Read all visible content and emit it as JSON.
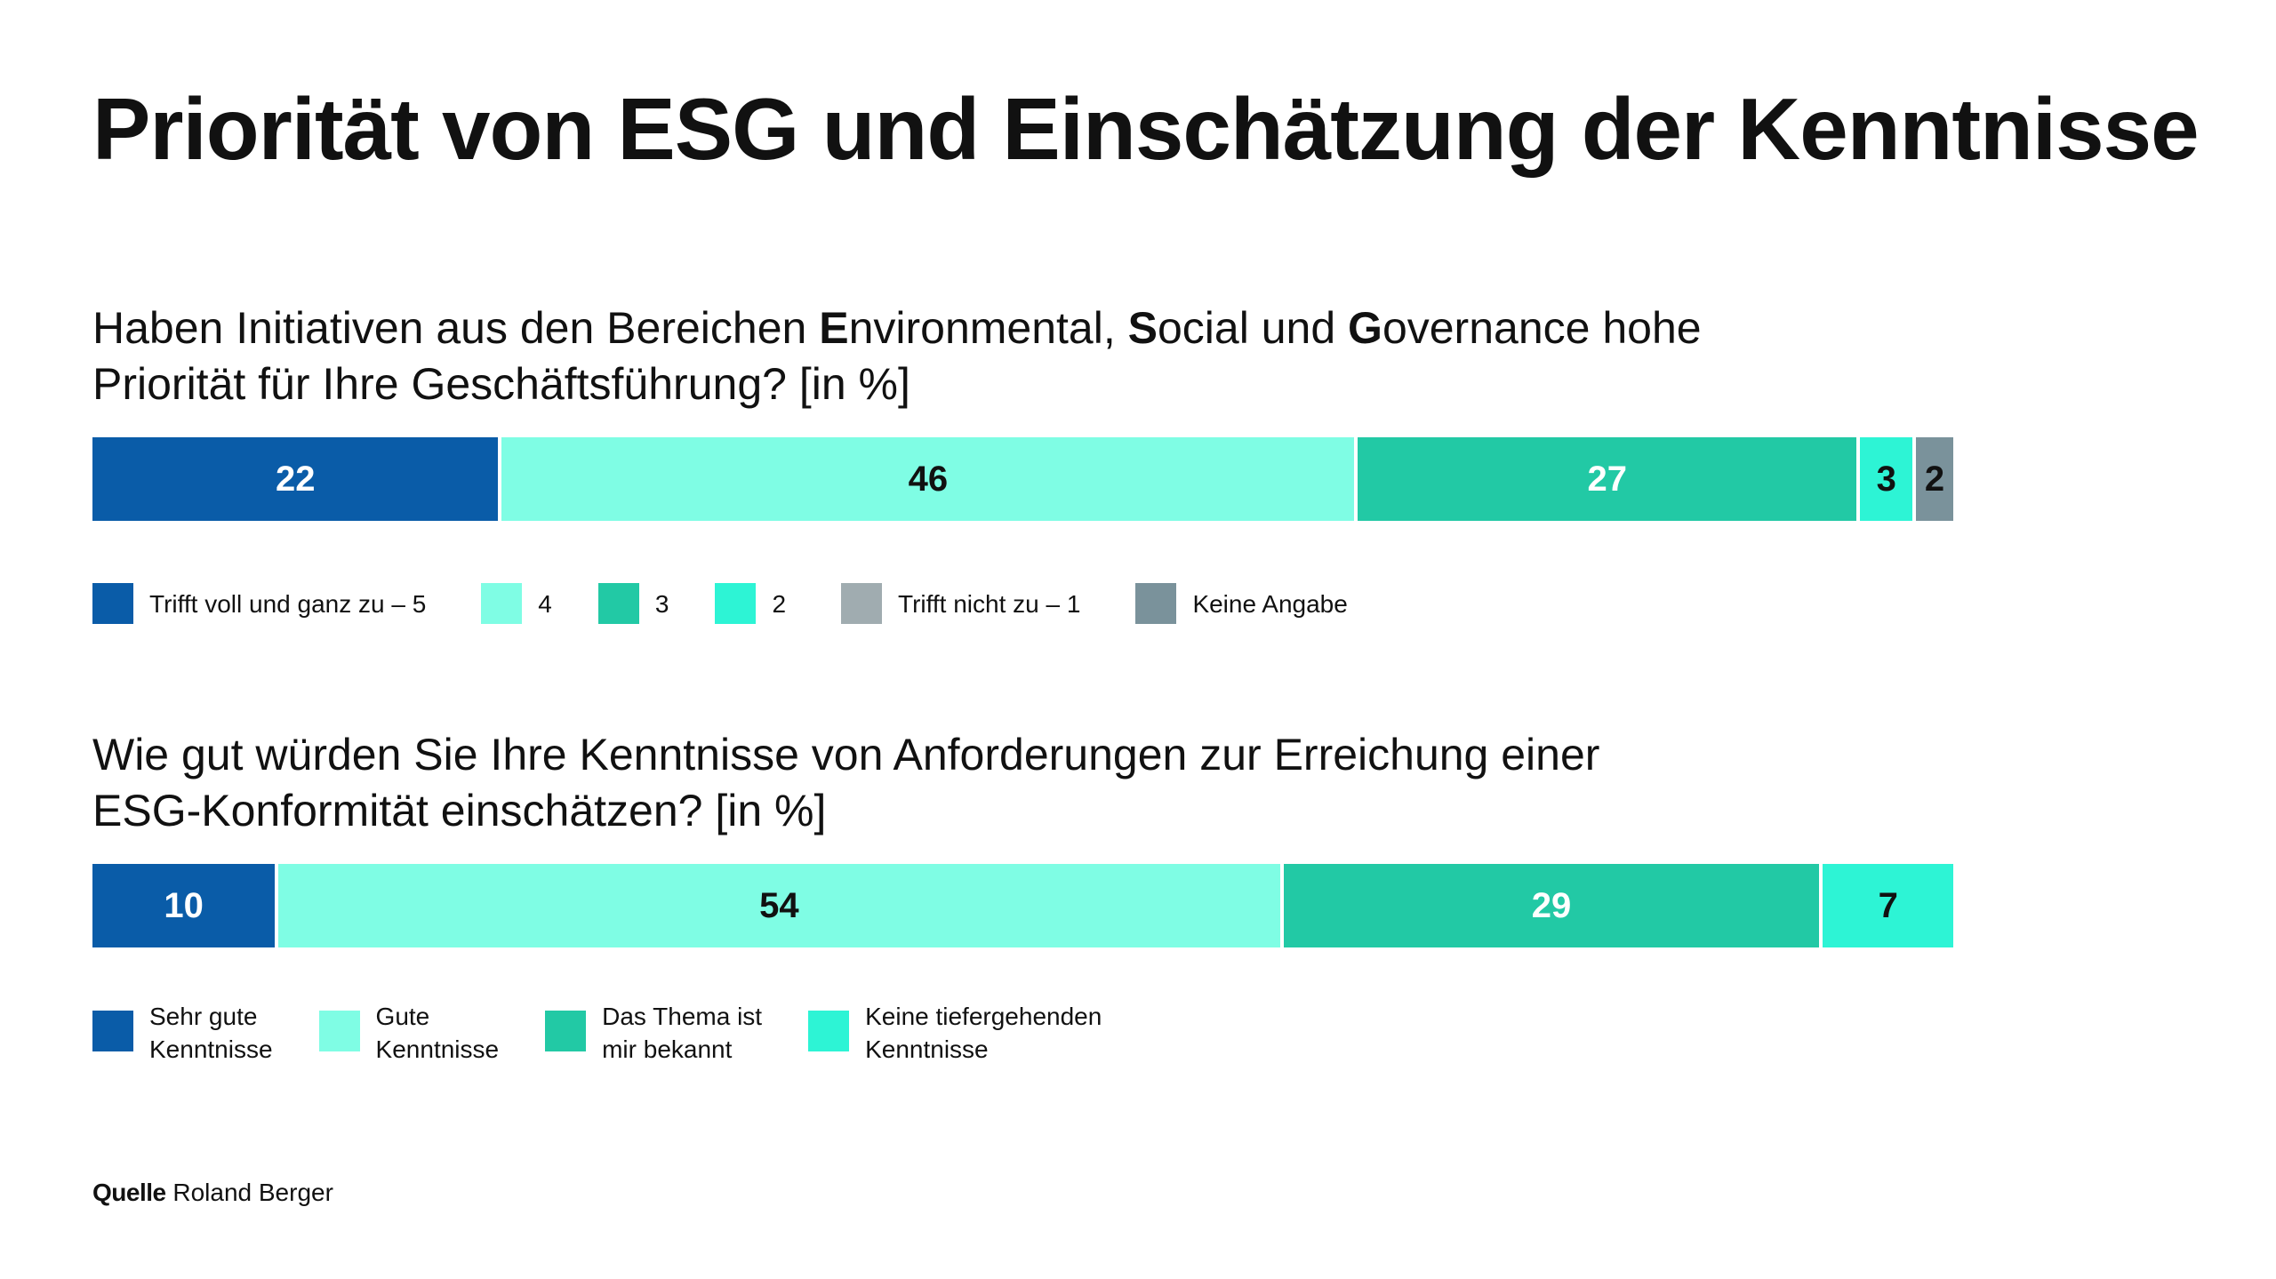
{
  "title": "Priorität von ESG und Einschätzung der Kenntnisse",
  "colors": {
    "dark_blue": "#0a5ca8",
    "light_mint": "#7ffde4",
    "teal": "#22c9a5",
    "bright_aqua": "#2df4d5",
    "light_grey": "#a0acb0",
    "dark_grey": "#7a929b"
  },
  "chart_data": [
    {
      "type": "bar",
      "stacked": true,
      "orientation": "horizontal",
      "title_parts": [
        {
          "text": "Haben Initiativen aus den Bereichen ",
          "bold": false
        },
        {
          "text": "E",
          "bold": true
        },
        {
          "text": "nvironmental, ",
          "bold": false
        },
        {
          "text": "S",
          "bold": true
        },
        {
          "text": "ocial und ",
          "bold": false
        },
        {
          "text": "G",
          "bold": true
        },
        {
          "text": "overnance hohe",
          "bold": false
        },
        {
          "text": "\n",
          "bold": false
        },
        {
          "text": "Priorität für Ihre Geschäftsführung? [in %]",
          "bold": false
        }
      ],
      "unit": "%",
      "xlim": [
        0,
        100
      ],
      "series": [
        {
          "name": "Trifft voll und ganz zu – 5",
          "value": 22,
          "label": "22",
          "color": "#0a5ca8",
          "text_color": "#ffffff"
        },
        {
          "name": "4",
          "value": 46,
          "label": "46",
          "color": "#7ffde4",
          "text_color": "#111111"
        },
        {
          "name": "3",
          "value": 27,
          "label": "27",
          "color": "#22c9a5",
          "text_color": "#ffffff"
        },
        {
          "name": "2",
          "value": 3,
          "label": "3",
          "color": "#2df4d5",
          "text_color": "#111111"
        },
        {
          "name": "Trifft nicht zu – 1",
          "value": 0,
          "label": "",
          "color": "#a0acb0",
          "text_color": "#111111"
        },
        {
          "name": "Keine Angabe",
          "value": 2,
          "label": "2",
          "color": "#7a929b",
          "text_color": "#111111"
        }
      ],
      "legend": "below"
    },
    {
      "type": "bar",
      "stacked": true,
      "orientation": "horizontal",
      "title_parts": [
        {
          "text": "Wie gut würden Sie Ihre Kenntnisse von Anforderungen zur Erreichung einer",
          "bold": false
        },
        {
          "text": "\n",
          "bold": false
        },
        {
          "text": "ESG-Konformität einschätzen? [in %]",
          "bold": false
        }
      ],
      "unit": "%",
      "xlim": [
        0,
        100
      ],
      "series": [
        {
          "name": "Sehr gute\nKenntnisse",
          "value": 10,
          "label": "10",
          "color": "#0a5ca8",
          "text_color": "#ffffff"
        },
        {
          "name": "Gute\nKenntnisse",
          "value": 54,
          "label": "54",
          "color": "#7ffde4",
          "text_color": "#111111"
        },
        {
          "name": "Das Thema ist\nmir bekannt",
          "value": 29,
          "label": "29",
          "color": "#22c9a5",
          "text_color": "#ffffff"
        },
        {
          "name": "Keine tiefergehenden\nKenntnisse",
          "value": 7,
          "label": "7",
          "color": "#2df4d5",
          "text_color": "#111111"
        }
      ],
      "legend": "below"
    }
  ],
  "source": {
    "label": "Quelle",
    "text": " Roland Berger"
  }
}
